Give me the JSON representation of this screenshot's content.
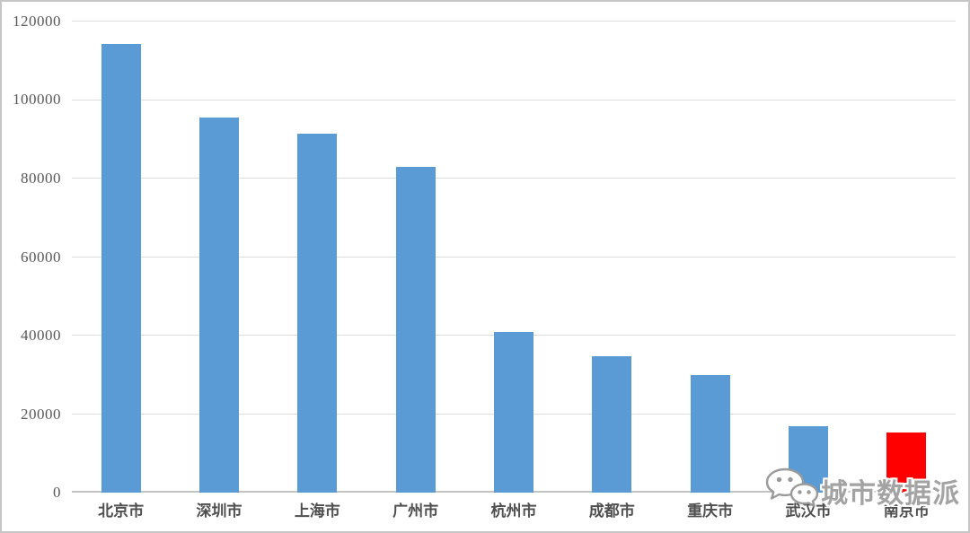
{
  "chart_data": {
    "type": "bar",
    "categories": [
      "北京市",
      "深圳市",
      "上海市",
      "广州市",
      "杭州市",
      "成都市",
      "重庆市",
      "武汉市",
      "南京市"
    ],
    "values": [
      114300,
      95500,
      91400,
      83000,
      41000,
      34700,
      30000,
      16900,
      15300
    ],
    "title": "",
    "xlabel": "",
    "ylabel": "",
    "ylim": [
      0,
      120000
    ],
    "yticks": [
      0,
      20000,
      40000,
      60000,
      80000,
      100000,
      120000
    ],
    "grid": true,
    "legend": false,
    "highlight_category": "南京市",
    "bar_colors": {
      "default": "#5B9BD5",
      "highlight": "#FF0000"
    }
  },
  "watermark": {
    "text": "城市数据派",
    "icon": "wechat-icon"
  },
  "colors": {
    "gridline": "#DCDCDC",
    "axis_line": "#C3C3C3",
    "tick_label": "#595959",
    "category_label": "#4F4F4F",
    "background": "#FFFFFF",
    "frame_border": "#C6C6C6",
    "watermark_text": "#A3A3A3"
  }
}
